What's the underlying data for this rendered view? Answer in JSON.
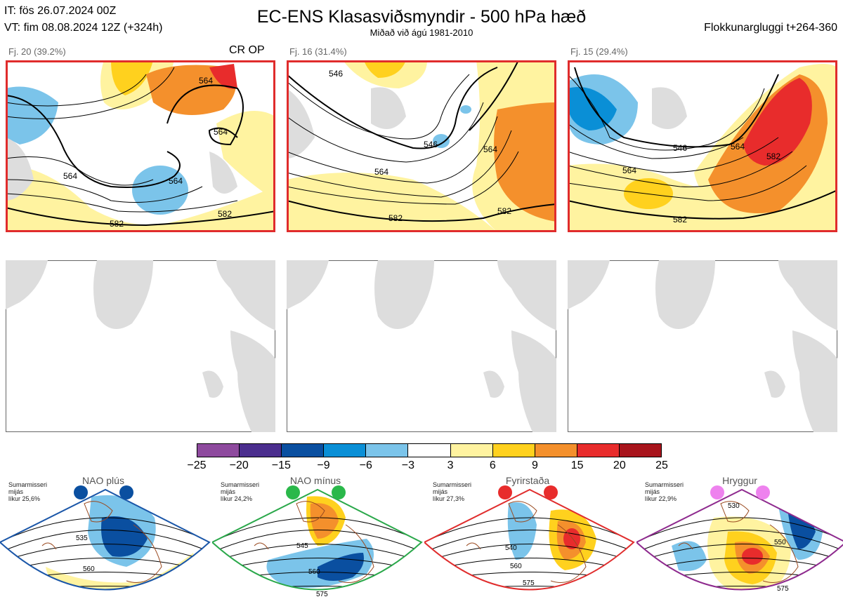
{
  "header": {
    "it_line": "IT: fös 26.07.2024 00Z",
    "vt_line": "VT: fim 08.08.2024 12Z  (+324h)",
    "title": "EC-ENS Klasasviðsmyndir - 500 hPa hæð",
    "subtitle": "Miðað við ágú 1981-2010",
    "window": "Flokkunargluggi t+264-360"
  },
  "panels": [
    {
      "label": "Fj. 20 (39.2%)",
      "tag": "CR OP",
      "contours": [
        "564",
        "564",
        "564",
        "564",
        "582",
        "582"
      ]
    },
    {
      "label": "Fj. 16 (31.4%)",
      "tag": "",
      "contours": [
        "546",
        "546",
        "564",
        "564",
        "582",
        "582"
      ]
    },
    {
      "label": "Fj. 15 (29.4%)",
      "tag": "",
      "contours": [
        "546",
        "564",
        "564",
        "582",
        "582"
      ]
    }
  ],
  "colorbar": {
    "ticks": [
      "−25",
      "−20",
      "−15",
      "−9",
      "−6",
      "−3",
      "3",
      "6",
      "9",
      "15",
      "20",
      "25"
    ],
    "colors": [
      "#8e4a9e",
      "#4b2e8e",
      "#0a4fa0",
      "#0a8fd6",
      "#7bc4ea",
      "#ffffff",
      "#fff3a0",
      "#ffd11e",
      "#f4902c",
      "#e82c2c",
      "#a8141c"
    ]
  },
  "regimes": [
    {
      "name": "NAO plús",
      "note": "Sumarmisseri\nmijás\nlíkur 25,6%",
      "contours": [
        "535",
        "560"
      ],
      "border": "#1a56a8",
      "dot": "#0a4fa0"
    },
    {
      "name": "NAO mínus",
      "note": "Sumarmisseri\nmijás\nlíkur 24,2%",
      "contours": [
        "545",
        "560",
        "575"
      ],
      "border": "#2aa84a",
      "dot": "#2ab84a"
    },
    {
      "name": "Fyrirstaða",
      "note": "Sumarmisseri\nmijás\nlíkur 27,3%",
      "contours": [
        "540",
        "560",
        "575"
      ],
      "border": "#e02c2c",
      "dot": "#e82c2c"
    },
    {
      "name": "Hryggur",
      "note": "Sumarmisseri\nmijás\nlíkur 22,9%",
      "contours": [
        "530",
        "550",
        "575"
      ],
      "border": "#8e2a8e",
      "dot": "#ee82ee"
    }
  ]
}
